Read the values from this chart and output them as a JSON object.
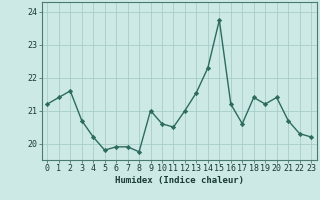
{
  "x": [
    0,
    1,
    2,
    3,
    4,
    5,
    6,
    7,
    8,
    9,
    10,
    11,
    12,
    13,
    14,
    15,
    16,
    17,
    18,
    19,
    20,
    21,
    22,
    23
  ],
  "y": [
    21.2,
    21.4,
    21.6,
    20.7,
    20.2,
    19.8,
    19.9,
    19.9,
    19.75,
    21.0,
    20.6,
    20.5,
    21.0,
    21.55,
    22.3,
    23.75,
    21.2,
    20.6,
    21.4,
    21.2,
    21.4,
    20.7,
    20.3,
    20.2
  ],
  "line_color": "#2d6b5e",
  "marker": "D",
  "marker_size": 2.2,
  "linewidth": 1.0,
  "bg_color": "#cce9e5",
  "grid_color": "#a8cdc8",
  "axis_color": "#4a7a70",
  "xlabel": "Humidex (Indice chaleur)",
  "ylim": [
    19.5,
    24.3
  ],
  "yticks": [
    20,
    21,
    22,
    23,
    24
  ],
  "xlim": [
    -0.5,
    23.5
  ],
  "xlabel_fontsize": 6.5,
  "tick_fontsize": 6.0
}
